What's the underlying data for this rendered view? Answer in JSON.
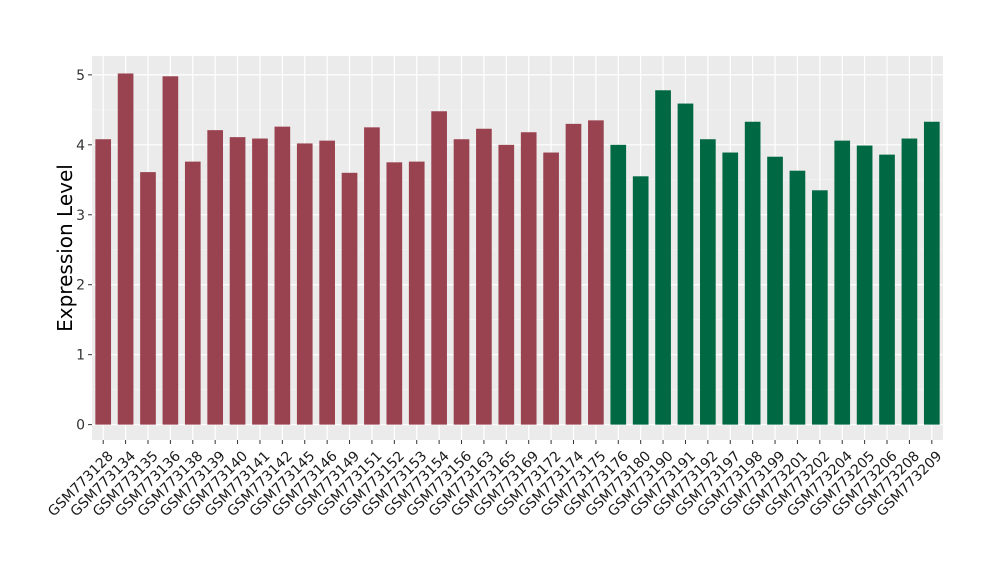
{
  "chart_data": {
    "type": "bar",
    "title": "",
    "xlabel": "",
    "ylabel": "Expression Level",
    "ylim": [
      -0.22,
      5.27
    ],
    "yticks": [
      0,
      1,
      2,
      3,
      4,
      5
    ],
    "grid": true,
    "legend": "none",
    "background": "#ebebeb",
    "colors": {
      "group1": "#9a4350",
      "group2": "#006843"
    },
    "categories": [
      "GSM773128",
      "GSM773134",
      "GSM773135",
      "GSM773136",
      "GSM773138",
      "GSM773139",
      "GSM773140",
      "GSM773141",
      "GSM773142",
      "GSM773145",
      "GSM773146",
      "GSM773149",
      "GSM773151",
      "GSM773152",
      "GSM773153",
      "GSM773154",
      "GSM773156",
      "GSM773163",
      "GSM773165",
      "GSM773169",
      "GSM773172",
      "GSM773174",
      "GSM773175",
      "GSM773176",
      "GSM773180",
      "GSM773190",
      "GSM773191",
      "GSM773192",
      "GSM773197",
      "GSM773198",
      "GSM773199",
      "GSM773201",
      "GSM773202",
      "GSM773204",
      "GSM773205",
      "GSM773206",
      "GSM773208",
      "GSM773209"
    ],
    "values": [
      4.08,
      5.02,
      3.61,
      4.98,
      3.76,
      4.21,
      4.11,
      4.09,
      4.26,
      4.02,
      4.06,
      3.6,
      4.25,
      3.75,
      3.76,
      4.48,
      4.08,
      4.23,
      4.0,
      4.18,
      3.89,
      4.3,
      4.35,
      4.0,
      3.55,
      4.78,
      4.59,
      4.08,
      3.89,
      4.33,
      3.83,
      3.63,
      3.35,
      4.06,
      3.99,
      3.86,
      4.09,
      4.33
    ],
    "groups": [
      "group1",
      "group1",
      "group1",
      "group1",
      "group1",
      "group1",
      "group1",
      "group1",
      "group1",
      "group1",
      "group1",
      "group1",
      "group1",
      "group1",
      "group1",
      "group1",
      "group1",
      "group1",
      "group1",
      "group1",
      "group1",
      "group1",
      "group1",
      "group2",
      "group2",
      "group2",
      "group2",
      "group2",
      "group2",
      "group2",
      "group2",
      "group2",
      "group2",
      "group2",
      "group2",
      "group2",
      "group2",
      "group2"
    ]
  }
}
